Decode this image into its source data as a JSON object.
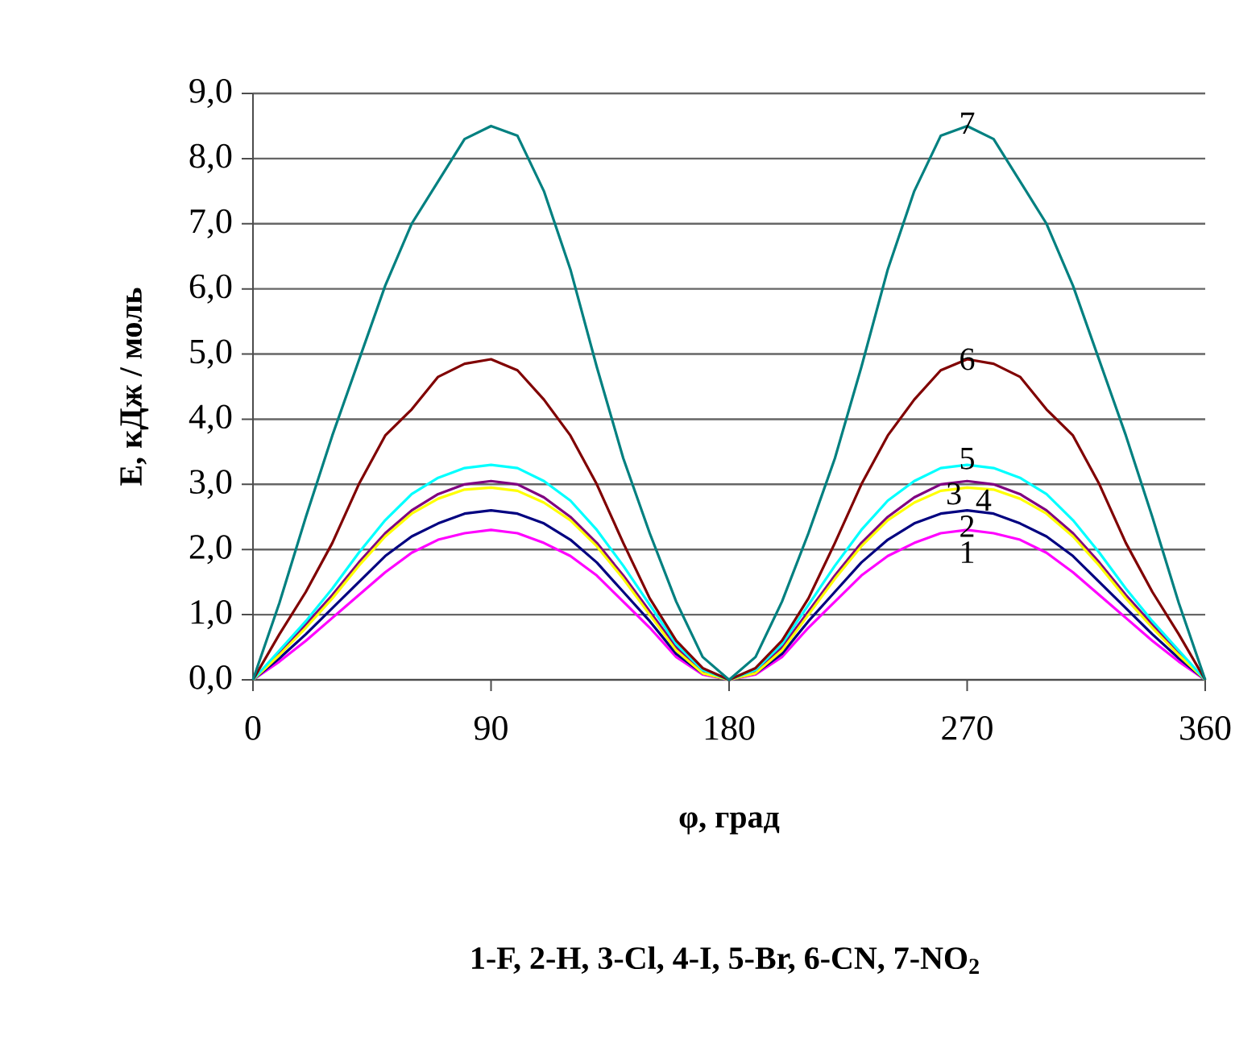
{
  "chart_data": {
    "type": "line",
    "xlabel": "φ, град",
    "ylabel": "E, кДж / моль",
    "annotations": [
      "1-F, 2-H, 3-Cl, 4-I, 5-Br, 6-CN, 7-NO$_{2}$"
    ],
    "x": [
      0,
      10,
      20,
      30,
      40,
      50,
      60,
      70,
      80,
      90,
      100,
      110,
      120,
      130,
      140,
      150,
      160,
      170,
      180,
      190,
      200,
      210,
      220,
      230,
      240,
      250,
      260,
      270,
      280,
      290,
      300,
      310,
      320,
      330,
      340,
      350,
      360
    ],
    "xlim": [
      0,
      360
    ],
    "xticks": [
      0,
      90,
      180,
      270,
      360
    ],
    "ylim": [
      0,
      9
    ],
    "yticks": [
      {
        "value": 0,
        "label": "0,0"
      },
      {
        "value": 1,
        "label": "1,0"
      },
      {
        "value": 2,
        "label": "2,0"
      },
      {
        "value": 3,
        "label": "3,0"
      },
      {
        "value": 4,
        "label": "4,0"
      },
      {
        "value": 5,
        "label": "5,0"
      },
      {
        "value": 6,
        "label": "6,0"
      },
      {
        "value": 7,
        "label": "7,0"
      },
      {
        "value": 8,
        "label": "8,0"
      },
      {
        "value": 9,
        "label": "9,0"
      }
    ],
    "grid": "y",
    "series": [
      {
        "name": "1",
        "color": "#ff00ff",
        "values": [
          0,
          0.28,
          0.6,
          0.95,
          1.3,
          1.65,
          1.95,
          2.15,
          2.25,
          2.3,
          2.25,
          2.1,
          1.9,
          1.6,
          1.2,
          0.8,
          0.35,
          0.08,
          0,
          0.08,
          0.35,
          0.8,
          1.2,
          1.6,
          1.9,
          2.1,
          2.25,
          2.3,
          2.25,
          2.15,
          1.95,
          1.65,
          1.3,
          0.95,
          0.6,
          0.28,
          0
        ]
      },
      {
        "name": "2",
        "color": "#000080",
        "values": [
          0,
          0.33,
          0.7,
          1.1,
          1.5,
          1.9,
          2.2,
          2.4,
          2.55,
          2.6,
          2.55,
          2.4,
          2.15,
          1.8,
          1.35,
          0.9,
          0.4,
          0.1,
          0,
          0.1,
          0.4,
          0.9,
          1.35,
          1.8,
          2.15,
          2.4,
          2.55,
          2.6,
          2.55,
          2.4,
          2.2,
          1.9,
          1.5,
          1.1,
          0.7,
          0.33,
          0
        ]
      },
      {
        "name": "3",
        "color": "#800080",
        "values": [
          0,
          0.4,
          0.85,
          1.3,
          1.8,
          2.25,
          2.6,
          2.85,
          3.0,
          3.05,
          3.0,
          2.8,
          2.5,
          2.1,
          1.6,
          1.05,
          0.5,
          0.12,
          0,
          0.12,
          0.5,
          1.05,
          1.6,
          2.1,
          2.5,
          2.8,
          3.0,
          3.05,
          3.0,
          2.85,
          2.6,
          2.25,
          1.8,
          1.3,
          0.85,
          0.4,
          0
        ]
      },
      {
        "name": "4",
        "color": "#ffff00",
        "values": [
          0,
          0.38,
          0.8,
          1.25,
          1.75,
          2.2,
          2.55,
          2.78,
          2.92,
          2.95,
          2.9,
          2.72,
          2.45,
          2.05,
          1.55,
          1.0,
          0.45,
          0.1,
          0,
          0.1,
          0.45,
          1.0,
          1.55,
          2.05,
          2.45,
          2.72,
          2.9,
          2.95,
          2.92,
          2.78,
          2.55,
          2.2,
          1.75,
          1.25,
          0.8,
          0.38,
          0
        ]
      },
      {
        "name": "5",
        "color": "#00ffff",
        "values": [
          0,
          0.45,
          0.9,
          1.4,
          1.95,
          2.45,
          2.85,
          3.1,
          3.25,
          3.3,
          3.25,
          3.05,
          2.75,
          2.3,
          1.75,
          1.15,
          0.55,
          0.15,
          0,
          0.15,
          0.55,
          1.15,
          1.75,
          2.3,
          2.75,
          3.05,
          3.25,
          3.3,
          3.25,
          3.1,
          2.85,
          2.45,
          1.95,
          1.4,
          0.9,
          0.45,
          0
        ]
      },
      {
        "name": "6",
        "color": "#800000",
        "values": [
          0,
          0.7,
          1.35,
          2.1,
          3.0,
          3.75,
          4.15,
          4.65,
          4.85,
          4.92,
          4.75,
          4.3,
          3.75,
          3.0,
          2.1,
          1.25,
          0.6,
          0.18,
          0,
          0.18,
          0.6,
          1.25,
          2.1,
          3.0,
          3.75,
          4.3,
          4.75,
          4.92,
          4.85,
          4.65,
          4.15,
          3.75,
          3.0,
          2.1,
          1.35,
          0.7,
          0
        ]
      },
      {
        "name": "7",
        "color": "#008080",
        "values": [
          0,
          1.18,
          2.5,
          3.75,
          4.9,
          6.05,
          7.0,
          7.65,
          8.3,
          8.5,
          8.35,
          7.5,
          6.3,
          4.8,
          3.4,
          2.25,
          1.2,
          0.35,
          0,
          0.35,
          1.2,
          2.25,
          3.4,
          4.8,
          6.3,
          7.5,
          8.35,
          8.5,
          8.3,
          7.65,
          7.0,
          6.05,
          4.9,
          3.75,
          2.5,
          1.18,
          0
        ]
      }
    ]
  }
}
